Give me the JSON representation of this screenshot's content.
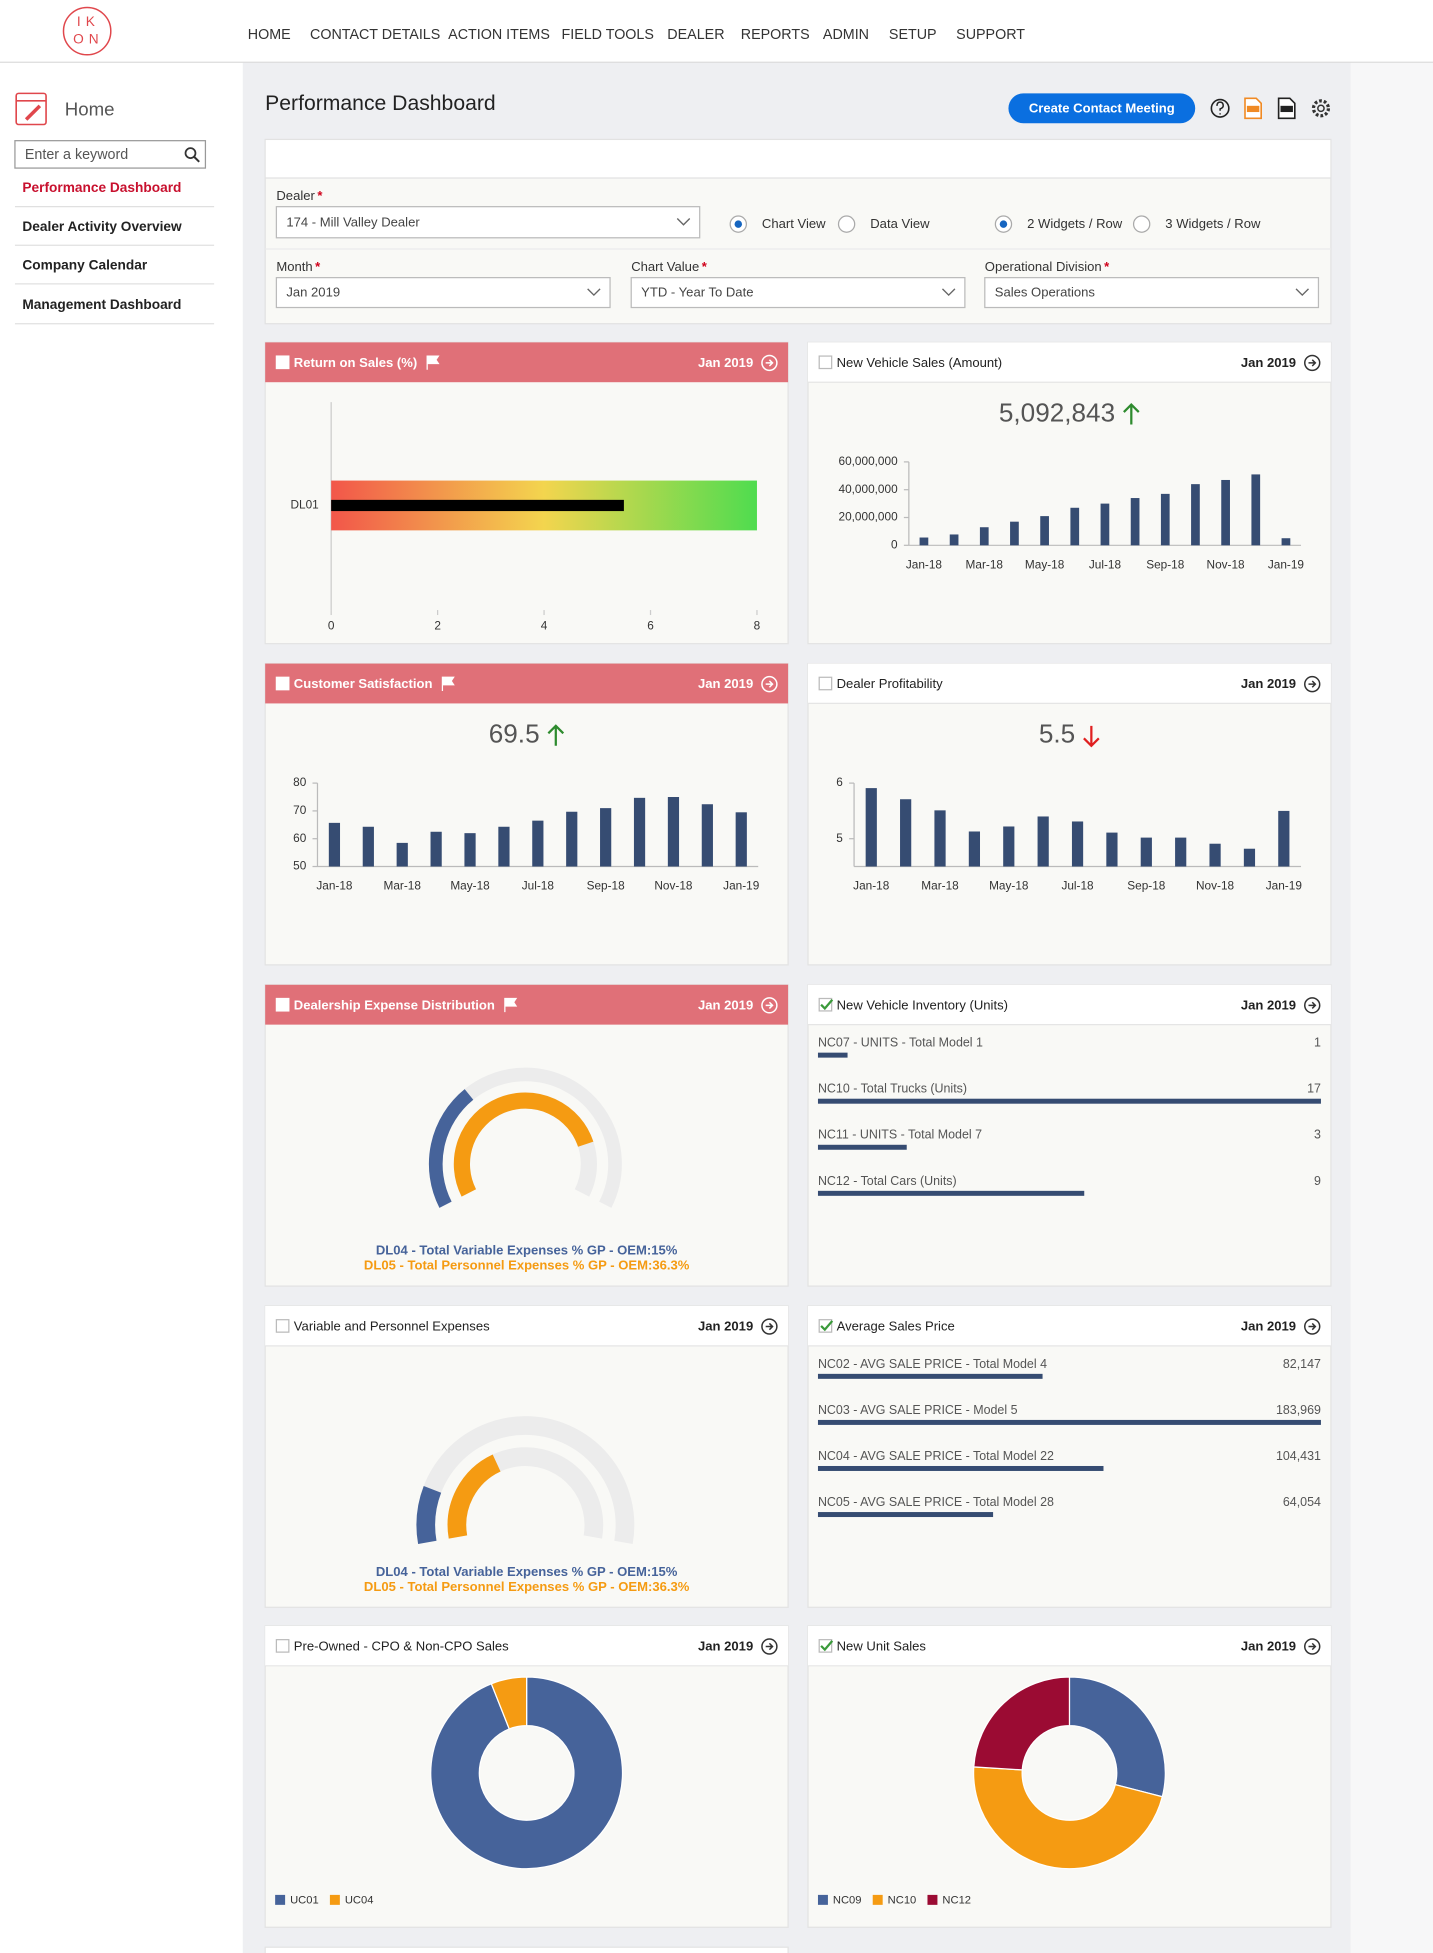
{
  "nav": {
    "logo": [
      "IK",
      "ON"
    ],
    "items": [
      "HOME",
      "CONTACT DETAILS",
      "ACTION ITEMS",
      "FIELD TOOLS",
      "DEALER",
      "REPORTS",
      "ADMIN",
      "SETUP",
      "SUPPORT"
    ]
  },
  "sidebar": {
    "home": "Home",
    "search_placeholder": "Enter a keyword",
    "links": [
      "Performance Dashboard",
      "Dealer Activity Overview",
      "Company Calendar",
      "Management Dashboard"
    ]
  },
  "header": {
    "title": "Performance Dashboard",
    "button": "Create Contact Meeting"
  },
  "filters": {
    "required": "*",
    "dealer": {
      "label": "Dealer",
      "value": "174 - Mill Valley Dealer"
    },
    "views": [
      "Chart View",
      "Data View"
    ],
    "layouts": [
      "2 Widgets / Row",
      "3 Widgets / Row"
    ],
    "month": {
      "label": "Month",
      "value": "Jan 2019"
    },
    "chart_value": {
      "label": "Chart Value",
      "value": "YTD - Year To Date"
    },
    "division": {
      "label": "Operational Division",
      "value": "Sales Operations"
    }
  },
  "widgets": [
    {
      "title": "Return on Sales (%)",
      "date": "Jan 2019",
      "header": "alert",
      "checked": false,
      "type": "bullet",
      "categories": [
        "DL01"
      ],
      "values": [
        5.5
      ],
      "xlim": [
        0,
        8
      ],
      "xticks": [
        0,
        2,
        4,
        6,
        8
      ]
    },
    {
      "title": "New Vehicle Sales (Amount)",
      "date": "Jan 2019",
      "header": "plain",
      "checked": false,
      "type": "bar",
      "kpi_value": 5092843,
      "kpi_label": "5,092,843",
      "trend": "up",
      "categories": [
        "Jan-18",
        null,
        "Mar-18",
        null,
        "May-18",
        null,
        "Jul-18",
        null,
        "Sep-18",
        null,
        "Nov-18",
        null,
        "Jan-19"
      ],
      "values": [
        5600000,
        7800000,
        13000000,
        17000000,
        21000000,
        27000000,
        30000000,
        34000000,
        37000000,
        44000000,
        47000000,
        51000000,
        5092843
      ],
      "color": "#364c72",
      "ylim": [
        0,
        60000000
      ],
      "yticks": [
        0,
        {
          "value": 20000000,
          "label": "20,000,000"
        },
        {
          "value": 40000000,
          "label": "40,000,000"
        },
        {
          "value": 60000000,
          "label": "60,000,000"
        }
      ]
    },
    {
      "title": "Customer Satisfaction",
      "date": "Jan 2019",
      "header": "alert",
      "checked": false,
      "type": "bar",
      "kpi_value": 69.5,
      "trend": "up",
      "categories": [
        "Jan-18",
        null,
        "Mar-18",
        null,
        "May-18",
        null,
        "Jul-18",
        null,
        "Sep-18",
        null,
        "Nov-18",
        null,
        "Jan-19"
      ],
      "values": [
        65.7,
        64.3,
        58.5,
        62.5,
        62,
        64.3,
        66.5,
        69.7,
        71,
        74.7,
        75,
        72.4,
        69.5
      ],
      "color": "#364c72",
      "ylim": [
        50,
        80
      ],
      "yticks": [
        50,
        60,
        70,
        80
      ]
    },
    {
      "title": "Dealer Profitability",
      "date": "Jan 2019",
      "header": "plain",
      "checked": false,
      "type": "bar",
      "kpi_value": 5.5,
      "trend": "down",
      "categories": [
        "Jan-18",
        null,
        "Mar-18",
        null,
        "May-18",
        null,
        "Jul-18",
        null,
        "Sep-18",
        null,
        "Nov-18",
        null,
        "Jan-19"
      ],
      "values": [
        5.91,
        5.71,
        5.51,
        5.13,
        5.22,
        5.4,
        5.31,
        5.11,
        5.02,
        5.02,
        4.91,
        4.82,
        5.5
      ],
      "color": "#364c72",
      "ylim": [
        4.5,
        6
      ],
      "yticks": [
        5,
        6
      ]
    },
    {
      "title": "Dealership Expense Distribution",
      "date": "Jan 2019",
      "header": "alert",
      "checked": false,
      "type": "gauge",
      "series": [
        {
          "name": "DL04 - Total Variable Expenses % GP - OEM:15%",
          "color": "#46639a",
          "value": 15
        },
        {
          "name": "DL05 - Total Personnel Expenses % GP - OEM:36.3%",
          "color": "#f59b12",
          "value": 36.3
        }
      ]
    },
    {
      "title": "New Vehicle Inventory (Units)",
      "date": "Jan 2019",
      "header": "plain",
      "checked": true,
      "type": "hbar",
      "categories": [
        "NC07 - UNITS - Total Model 1",
        "NC10 - Total Trucks (Units)",
        "NC11 - UNITS - Total Model 7",
        "NC12 - Total Cars (Units)"
      ],
      "values": [
        1,
        17,
        3,
        9
      ],
      "color": "#364c72"
    },
    {
      "title": "Variable and Personnel Expenses",
      "date": "Jan 2019",
      "header": "plain",
      "checked": false,
      "type": "gauge",
      "series": [
        {
          "name": "DL04 - Total Variable Expenses % GP - OEM:15%",
          "color": "#46639a",
          "value": 15
        },
        {
          "name": "DL05 - Total Personnel Expenses % GP - OEM:36.3%",
          "color": "#f59b12",
          "value": 36.3
        }
      ]
    },
    {
      "title": "Average Sales Price",
      "date": "Jan 2019",
      "header": "plain",
      "checked": true,
      "type": "hbar",
      "categories": [
        "NC02 - AVG SALE PRICE - Total Model 4",
        "NC03 - AVG SALE PRICE - Model 5",
        "NC04 - AVG SALE PRICE - Total Model 22",
        "NC05 - AVG SALE PRICE - Total Model 28"
      ],
      "values": [
        82147,
        183969,
        104431,
        64054
      ],
      "value_labels": [
        "82,147",
        "183,969",
        "104,431",
        "64,054"
      ],
      "color": "#364c72"
    },
    {
      "title": "Pre-Owned - CPO & Non-CPO Sales",
      "date": "Jan 2019",
      "header": "plain",
      "checked": false,
      "type": "donut",
      "series": [
        {
          "name": "UC01",
          "color": "#46639a",
          "value": 94
        },
        {
          "name": "UC04",
          "color": "#f59b12",
          "value": 6
        }
      ]
    },
    {
      "title": "New Unit Sales",
      "date": "Jan 2019",
      "header": "plain",
      "checked": true,
      "type": "donut",
      "series": [
        {
          "name": "NC09",
          "color": "#46639a",
          "value": 29
        },
        {
          "name": "NC10",
          "color": "#f59b12",
          "value": 47
        },
        {
          "name": "NC12",
          "color": "#9b0b33",
          "value": 24
        }
      ]
    }
  ]
}
